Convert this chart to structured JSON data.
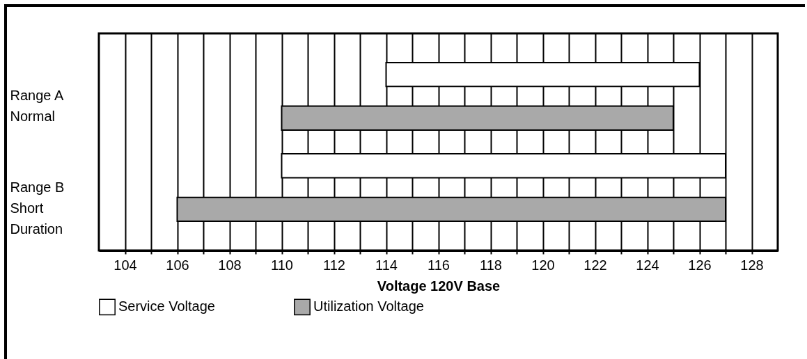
{
  "chart_data": {
    "type": "bar",
    "orientation": "horizontal",
    "categories": [
      "Range A\nNormal",
      "Range B\nShort\nDuration"
    ],
    "series": [
      {
        "name": "Service Voltage",
        "color": "#ffffff",
        "base": [
          114,
          110
        ],
        "values": [
          12,
          17
        ]
      },
      {
        "name": "Utilization Voltage",
        "color": "#a9a9a9",
        "base": [
          110,
          106
        ],
        "values": [
          15,
          21
        ]
      }
    ],
    "xlabel": "Voltage 120V Base",
    "xlim": [
      103,
      129
    ],
    "xticks": [
      104,
      {
        "value": 105,
        "label": null
      },
      106,
      {
        "value": 107,
        "label": null
      },
      108,
      {
        "value": 109,
        "label": null
      },
      110,
      {
        "value": 111,
        "label": null
      },
      112,
      {
        "value": 113,
        "label": null
      },
      114,
      {
        "value": 115,
        "label": null
      },
      116,
      {
        "value": 117,
        "label": null
      },
      118,
      {
        "value": 119,
        "label": null
      },
      120,
      {
        "value": 121,
        "label": null
      },
      122,
      {
        "value": 123,
        "label": null
      },
      124,
      {
        "value": 125,
        "label": null
      },
      126,
      {
        "value": 127,
        "label": null
      },
      128
    ],
    "grid": "x",
    "legend": "bottom"
  }
}
